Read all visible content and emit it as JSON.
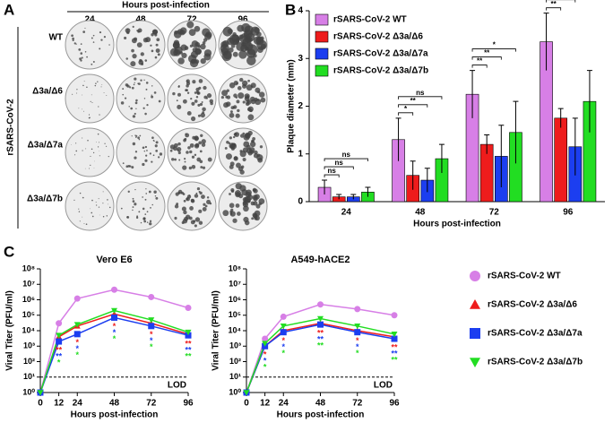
{
  "panel_labels": [
    "A",
    "B",
    "C"
  ],
  "panel_a": {
    "column_title": "Hours post-infection",
    "columns": [
      "24",
      "48",
      "72",
      "96"
    ],
    "row_title": "rSARS-CoV-2",
    "rows": [
      "WT",
      "Δ3a/Δ6",
      "Δ3a/Δ7a",
      "Δ3a/Δ7b"
    ]
  },
  "chart_data": [
    {
      "type": "bar",
      "ylabel": "Plaque diameter (mm)",
      "xlabel": "Hours post-infection",
      "categories": [
        "24",
        "48",
        "72",
        "96"
      ],
      "series": [
        {
          "name": "rSARS-CoV-2 WT",
          "color": "#d77fe6",
          "values": [
            0.3,
            1.3,
            2.25,
            3.35
          ],
          "errors": [
            0.15,
            0.45,
            0.5,
            0.6
          ]
        },
        {
          "name": "rSARS-CoV-2 Δ3a/Δ6",
          "color": "#ee1c1c",
          "values": [
            0.1,
            0.55,
            1.2,
            1.75
          ],
          "errors": [
            0.05,
            0.3,
            0.2,
            0.2
          ]
        },
        {
          "name": "rSARS-CoV-2 Δ3a/Δ7a",
          "color": "#1c3ef0",
          "values": [
            0.1,
            0.45,
            0.95,
            1.15
          ],
          "errors": [
            0.05,
            0.25,
            0.65,
            0.6
          ]
        },
        {
          "name": "rSARS-CoV-2 Δ3a/Δ7b",
          "color": "#22dd22",
          "values": [
            0.2,
            0.9,
            1.45,
            2.1
          ],
          "errors": [
            0.1,
            0.3,
            0.65,
            0.65
          ]
        }
      ],
      "significance": [
        [
          "ns",
          "ns",
          "ns"
        ],
        [
          "*",
          "**",
          "ns"
        ],
        [
          "**",
          "**",
          "*"
        ],
        [
          "**",
          "**",
          "**"
        ]
      ],
      "ylim": [
        0,
        4
      ],
      "yticks": [
        0,
        1,
        2,
        3,
        4
      ]
    },
    {
      "type": "line",
      "title": "Vero E6",
      "ylabel": "Viral Titer (PFU/ml)",
      "xlabel": "Hours post-infection",
      "log_y": true,
      "x": [
        0,
        12,
        24,
        48,
        72,
        96
      ],
      "series": [
        {
          "name": "rSARS-CoV-2 WT",
          "color": "#d77fe6",
          "marker": "circle",
          "values": [
            1,
            30000,
            1200000,
            4500000,
            1500000,
            300000
          ]
        },
        {
          "name": "rSARS-CoV-2 Δ3a/Δ6",
          "color": "#ee1c1c",
          "marker": "triangle",
          "values": [
            1,
            4000,
            20000,
            120000,
            30000,
            6000
          ]
        },
        {
          "name": "rSARS-CoV-2 Δ3a/Δ7a",
          "color": "#1c3ef0",
          "marker": "square",
          "values": [
            1,
            2000,
            6000,
            70000,
            20000,
            5000
          ]
        },
        {
          "name": "rSARS-CoV-2 Δ3a/Δ7b",
          "color": "#22dd22",
          "marker": "triangle-down",
          "values": [
            1,
            5000,
            25000,
            200000,
            50000,
            8000
          ]
        }
      ],
      "significance": [
        null,
        [
          "**",
          "**",
          "*"
        ],
        [
          "*",
          "*",
          "*"
        ],
        [
          "*",
          "*",
          "*"
        ],
        [
          "*",
          "*",
          "*"
        ],
        [
          "**",
          "**",
          "**"
        ]
      ],
      "lod": 10,
      "lod_label": "LOD",
      "xlim": [
        0,
        96
      ],
      "xticks": [
        0,
        12,
        24,
        48,
        72,
        96
      ],
      "ylim": [
        1,
        100000000
      ],
      "yticks": [
        {
          "value": 1,
          "label": "10⁰"
        },
        {
          "value": 10,
          "label": "10¹"
        },
        {
          "value": 100,
          "label": "10²"
        },
        {
          "value": 1000,
          "label": "10³"
        },
        {
          "value": 10000,
          "label": "10⁴"
        },
        {
          "value": 100000,
          "label": "10⁵"
        },
        {
          "value": 1000000,
          "label": "10⁶"
        },
        {
          "value": 10000000,
          "label": "10⁷"
        },
        {
          "value": 100000000,
          "label": "10⁸"
        }
      ]
    },
    {
      "type": "line",
      "title": "A549-hACE2",
      "ylabel": "Viral Titer (PFU/ml)",
      "xlabel": "Hours post-infection",
      "log_y": true,
      "x": [
        0,
        12,
        24,
        48,
        72,
        96
      ],
      "series": [
        {
          "name": "rSARS-CoV-2 WT",
          "color": "#d77fe6",
          "marker": "circle",
          "values": [
            1,
            3000,
            80000,
            500000,
            250000,
            100000
          ]
        },
        {
          "name": "rSARS-CoV-2 Δ3a/Δ6",
          "color": "#ee1c1c",
          "marker": "triangle",
          "values": [
            1,
            1000,
            10000,
            30000,
            10000,
            4000
          ]
        },
        {
          "name": "rSARS-CoV-2 Δ3a/Δ7a",
          "color": "#1c3ef0",
          "marker": "square",
          "values": [
            1,
            1000,
            8000,
            25000,
            8000,
            3000
          ]
        },
        {
          "name": "rSARS-CoV-2 Δ3a/Δ7b",
          "color": "#22dd22",
          "marker": "triangle-down",
          "values": [
            1,
            1500,
            20000,
            60000,
            20000,
            6000
          ]
        }
      ],
      "significance": [
        null,
        [
          "*",
          "*",
          "*"
        ],
        [
          "*",
          "*",
          "*"
        ],
        [
          "**",
          "**",
          "**"
        ],
        [
          "*",
          "*",
          "*"
        ],
        [
          "**",
          "**",
          "**"
        ]
      ],
      "lod": 10,
      "lod_label": "LOD",
      "xlim": [
        0,
        96
      ],
      "xticks": [
        0,
        12,
        24,
        48,
        72,
        96
      ],
      "ylim": [
        1,
        100000000
      ],
      "yticks": [
        {
          "value": 1,
          "label": "10⁰"
        },
        {
          "value": 10,
          "label": "10¹"
        },
        {
          "value": 100,
          "label": "10²"
        },
        {
          "value": 1000,
          "label": "10³"
        },
        {
          "value": 10000,
          "label": "10⁴"
        },
        {
          "value": 100000,
          "label": "10⁵"
        },
        {
          "value": 1000000,
          "label": "10⁶"
        },
        {
          "value": 10000000,
          "label": "10⁷"
        },
        {
          "value": 100000000,
          "label": "10⁸"
        }
      ]
    }
  ]
}
